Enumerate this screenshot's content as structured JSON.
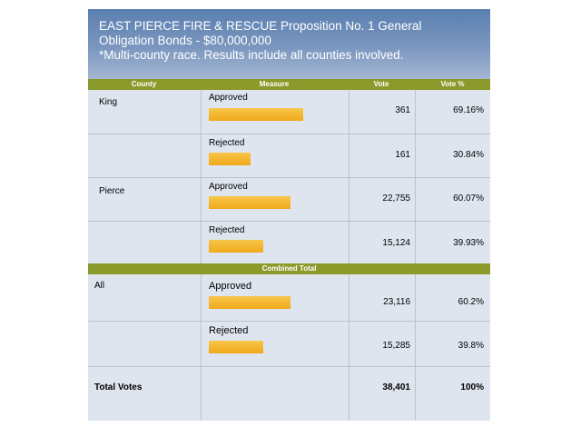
{
  "header": {
    "line1": "EAST PIERCE FIRE & RESCUE Proposition No. 1 General",
    "line2": "Obligation Bonds - $80,000,000",
    "line3": "*Multi-county race. Results include all counties involved."
  },
  "columns": {
    "county": "County",
    "measure": "Measure",
    "vote": "Vote",
    "vote_pct": "Vote %"
  },
  "rows": [
    {
      "county": "King",
      "measure": "Approved",
      "vote": "361",
      "pct": "69.16%",
      "share": 0.6916
    },
    {
      "county": "",
      "measure": "Rejected",
      "vote": "161",
      "pct": "30.84%",
      "share": 0.3084
    },
    {
      "county": "Pierce",
      "measure": "Approved",
      "vote": "22,755",
      "pct": "60.07%",
      "share": 0.6007
    },
    {
      "county": "",
      "measure": "Rejected",
      "vote": "15,124",
      "pct": "39.93%",
      "share": 0.3993
    }
  ],
  "combined_label": "Combined Total",
  "combined_rows": [
    {
      "county": "All",
      "measure": "Approved",
      "vote": "23,116",
      "pct": "60.2%",
      "share": 0.602
    },
    {
      "county": "",
      "measure": "Rejected",
      "vote": "15,285",
      "pct": "39.8%",
      "share": 0.398
    }
  ],
  "total": {
    "label": "Total Votes",
    "vote": "38,401",
    "pct": "100%"
  },
  "colors": {
    "header_bg": "#6a8cba",
    "band": "#8b9a2a",
    "bar": "#f4b531",
    "panel": "#dfe5ef"
  }
}
